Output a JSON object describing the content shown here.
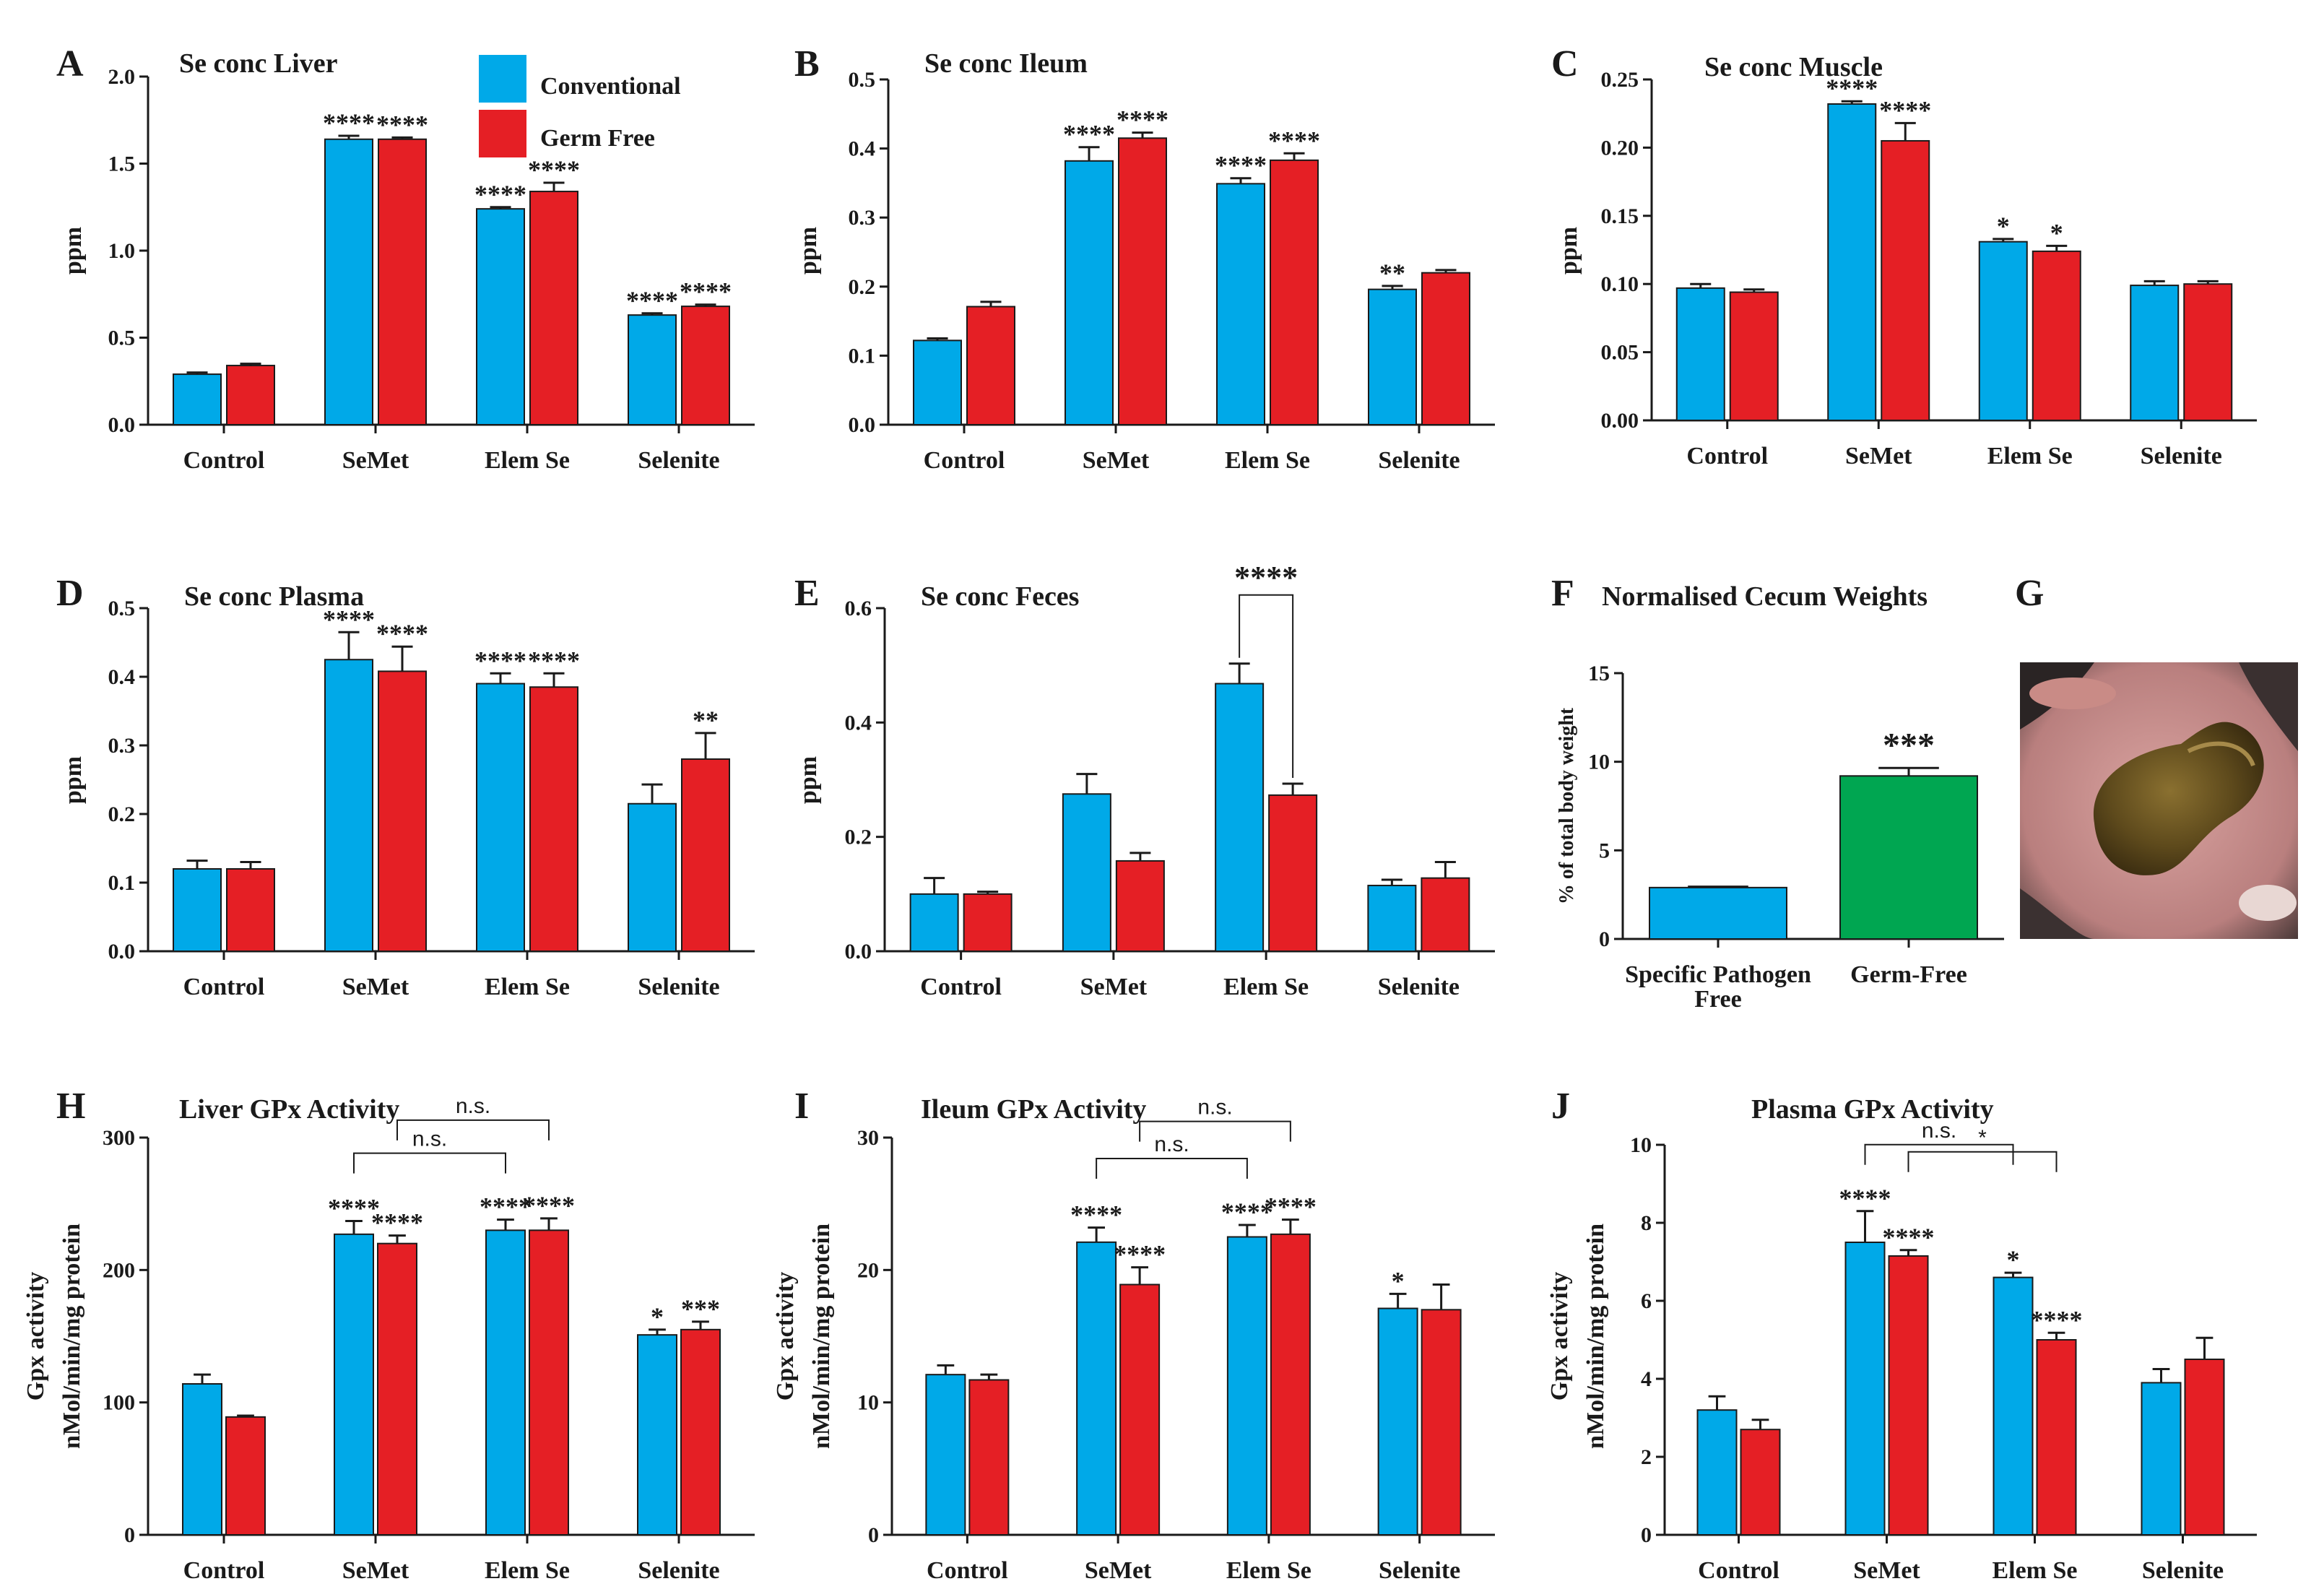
{
  "colors": {
    "conventional": "#00a9e8",
    "germ_free": "#e51f25",
    "spf": "#00a9e8",
    "gf": "#00a651",
    "axis": "#1a1a1a"
  },
  "legend": {
    "conventional": "Conventional",
    "germ_free": "Germ Free"
  },
  "photo": {
    "letter": "G",
    "icon": "cecum-photo"
  },
  "chart_data": [
    {
      "id": "A",
      "letter": "A",
      "title": "Se conc Liver",
      "type": "bar",
      "ylabel": "ppm",
      "ylim": [
        0,
        2.0
      ],
      "yticks": [
        "0.0",
        "0.5",
        "1.0",
        "1.5",
        "2.0"
      ],
      "categories": [
        "Control",
        "SeMet",
        "Elem Se",
        "Selenite"
      ],
      "series": [
        {
          "name": "Conventional",
          "values": [
            0.29,
            1.64,
            1.24,
            0.63
          ],
          "errors": [
            0.01,
            0.02,
            0.01,
            0.01
          ],
          "sig": [
            "",
            "****",
            "****",
            "****"
          ]
        },
        {
          "name": "Germ Free",
          "values": [
            0.34,
            1.64,
            1.34,
            0.68
          ],
          "errors": [
            0.01,
            0.01,
            0.05,
            0.01
          ],
          "sig": [
            "",
            "****",
            "****",
            "****"
          ]
        }
      ]
    },
    {
      "id": "B",
      "letter": "B",
      "title": "Se conc Ileum",
      "type": "bar",
      "ylabel": "ppm",
      "ylim": [
        0,
        0.5
      ],
      "yticks": [
        "0.0",
        "0.1",
        "0.2",
        "0.3",
        "0.4",
        "0.5"
      ],
      "categories": [
        "Control",
        "SeMet",
        "Elem Se",
        "Selenite"
      ],
      "series": [
        {
          "name": "Conventional",
          "values": [
            0.122,
            0.382,
            0.349,
            0.196
          ],
          "errors": [
            0.003,
            0.02,
            0.008,
            0.005
          ],
          "sig": [
            "",
            "****",
            "****",
            "**"
          ]
        },
        {
          "name": "Germ Free",
          "values": [
            0.171,
            0.415,
            0.383,
            0.22
          ],
          "errors": [
            0.007,
            0.008,
            0.01,
            0.004
          ],
          "sig": [
            "",
            "****",
            "****",
            ""
          ]
        }
      ]
    },
    {
      "id": "C",
      "letter": "C",
      "title": "Se conc Muscle",
      "type": "bar",
      "ylabel": "ppm",
      "ylim": [
        0,
        0.25
      ],
      "yticks": [
        "0.00",
        "0.05",
        "0.10",
        "0.15",
        "0.20",
        "0.25"
      ],
      "categories": [
        "Control",
        "SeMet",
        "Elem Se",
        "Selenite"
      ],
      "series": [
        {
          "name": "Conventional",
          "values": [
            0.097,
            0.232,
            0.131,
            0.099
          ],
          "errors": [
            0.003,
            0.002,
            0.002,
            0.003
          ],
          "sig": [
            "",
            "****",
            "*",
            ""
          ]
        },
        {
          "name": "Germ Free",
          "values": [
            0.094,
            0.205,
            0.124,
            0.1
          ],
          "errors": [
            0.002,
            0.013,
            0.004,
            0.002
          ],
          "sig": [
            "",
            "****",
            "*",
            ""
          ]
        }
      ]
    },
    {
      "id": "D",
      "letter": "D",
      "title": "Se conc Plasma",
      "type": "bar",
      "ylabel": "ppm",
      "ylim": [
        0,
        0.5
      ],
      "yticks": [
        "0.0",
        "0.1",
        "0.2",
        "0.3",
        "0.4",
        "0.5"
      ],
      "categories": [
        "Control",
        "SeMet",
        "Elem Se",
        "Selenite"
      ],
      "series": [
        {
          "name": "Conventional",
          "values": [
            0.12,
            0.425,
            0.39,
            0.215
          ],
          "errors": [
            0.012,
            0.04,
            0.015,
            0.028
          ],
          "sig": [
            "",
            "****",
            "****",
            ""
          ]
        },
        {
          "name": "Germ Free",
          "values": [
            0.12,
            0.408,
            0.385,
            0.28
          ],
          "errors": [
            0.01,
            0.036,
            0.02,
            0.038
          ],
          "sig": [
            "",
            "****",
            "****",
            "**"
          ]
        }
      ]
    },
    {
      "id": "E",
      "letter": "E",
      "title": "Se conc Feces",
      "type": "bar",
      "ylabel": "ppm",
      "ylim": [
        0,
        0.6
      ],
      "yticks": [
        "0.0",
        "0.2",
        "0.4",
        "0.6"
      ],
      "categories": [
        "Control",
        "SeMet",
        "Elem Se",
        "Selenite"
      ],
      "series": [
        {
          "name": "Conventional",
          "values": [
            0.1,
            0.275,
            0.468,
            0.115
          ],
          "errors": [
            0.028,
            0.035,
            0.035,
            0.01
          ],
          "sig": [
            "",
            "",
            "",
            ""
          ]
        },
        {
          "name": "Germ Free",
          "values": [
            0.1,
            0.158,
            0.273,
            0.128
          ],
          "errors": [
            0.004,
            0.014,
            0.02,
            0.028
          ],
          "sig": [
            "",
            "",
            "",
            ""
          ]
        }
      ],
      "brackets": [
        {
          "label": "****",
          "from": [
            2,
            0
          ],
          "to": [
            2,
            1
          ]
        }
      ]
    },
    {
      "id": "F",
      "letter": "F",
      "title": "Normalised Cecum Weights",
      "type": "bar",
      "ylabel": "% of total body weight",
      "ylim": [
        0,
        15
      ],
      "yticks": [
        "0",
        "5",
        "10",
        "15"
      ],
      "categories": [
        "Specific Pathogen Free",
        "Germ-Free"
      ],
      "category_lines": [
        [
          "Specific Pathogen",
          "Free"
        ],
        [
          "Germ-Free"
        ]
      ],
      "values": [
        2.9,
        9.2
      ],
      "errors": [
        0.05,
        0.45
      ],
      "sig": [
        "",
        "***"
      ]
    },
    {
      "id": "H",
      "letter": "H",
      "title": "Liver GPx Activity",
      "type": "bar",
      "ylabel": "Gpx activity",
      "ylabel2": "nMol/min/mg protein",
      "ylim": [
        0,
        300
      ],
      "yticks": [
        "0",
        "100",
        "200",
        "300"
      ],
      "categories": [
        "Control",
        "SeMet",
        "Elem Se",
        "Selenite"
      ],
      "series": [
        {
          "name": "Conventional",
          "values": [
            114,
            227,
            230,
            151
          ],
          "errors": [
            7,
            10,
            8,
            4
          ],
          "sig": [
            "",
            "****",
            "****",
            "*"
          ]
        },
        {
          "name": "Germ Free",
          "values": [
            89,
            220,
            230,
            155
          ],
          "errors": [
            1,
            6,
            9,
            6
          ],
          "sig": [
            "",
            "****",
            "****",
            "***"
          ]
        }
      ],
      "brackets": [
        {
          "label": "n.s.",
          "from": [
            1,
            0
          ],
          "to": [
            2,
            0
          ],
          "level": 0
        },
        {
          "label": "n.s.",
          "from": [
            1,
            1
          ],
          "to": [
            2,
            1
          ],
          "level": 1
        }
      ]
    },
    {
      "id": "I",
      "letter": "I",
      "title": "Ileum GPx Activity",
      "type": "bar",
      "ylabel": "Gpx activity",
      "ylabel2": "nMol/min/mg protein",
      "ylim": [
        0,
        30
      ],
      "yticks": [
        "0",
        "10",
        "20",
        "30"
      ],
      "categories": [
        "Control",
        "SeMet",
        "Elem Se",
        "Selenite"
      ],
      "series": [
        {
          "name": "Conventional",
          "values": [
            12.1,
            22.1,
            22.5,
            17.1
          ],
          "errors": [
            0.7,
            1.1,
            0.9,
            1.1
          ],
          "sig": [
            "",
            "****",
            "****",
            "*"
          ]
        },
        {
          "name": "Germ Free",
          "values": [
            11.7,
            18.9,
            22.7,
            17.0
          ],
          "errors": [
            0.4,
            1.3,
            1.1,
            1.9
          ],
          "sig": [
            "",
            "****",
            "****",
            ""
          ]
        }
      ],
      "brackets": [
        {
          "label": "n.s.",
          "from": [
            1,
            0
          ],
          "to": [
            2,
            0
          ],
          "level": 0
        },
        {
          "label": "n.s.",
          "from": [
            1,
            1
          ],
          "to": [
            2,
            1
          ],
          "level": 1
        }
      ]
    },
    {
      "id": "J",
      "letter": "J",
      "title": "Plasma GPx Activity",
      "type": "bar",
      "ylabel": "Gpx activity",
      "ylabel2": "nMol/min/mg protein",
      "ylim": [
        0,
        10
      ],
      "yticks": [
        "0",
        "2",
        "4",
        "6",
        "8",
        "10"
      ],
      "categories": [
        "Control",
        "SeMet",
        "Elem Se",
        "Selenite"
      ],
      "series": [
        {
          "name": "Conventional",
          "values": [
            3.2,
            7.5,
            6.6,
            3.9
          ],
          "errors": [
            0.35,
            0.8,
            0.12,
            0.35
          ],
          "sig": [
            "",
            "****",
            "*",
            ""
          ]
        },
        {
          "name": "Germ Free",
          "values": [
            2.7,
            7.15,
            5.0,
            4.5
          ],
          "errors": [
            0.25,
            0.15,
            0.18,
            0.55
          ],
          "sig": [
            "",
            "****",
            "****",
            ""
          ]
        }
      ],
      "brackets": [
        {
          "label": "n.s.",
          "from": [
            1,
            0
          ],
          "to": [
            2,
            0
          ],
          "level": 0
        },
        {
          "label": "*",
          "from": [
            1,
            1
          ],
          "to": [
            2,
            1
          ],
          "level": 1
        }
      ]
    }
  ]
}
